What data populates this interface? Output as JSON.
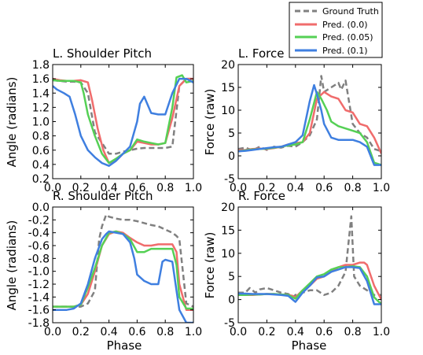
{
  "chart_data": [
    {
      "type": "line",
      "title": "L. Shoulder Pitch",
      "ylabel": "Angle (radians)",
      "xlabel": "",
      "xlim": [
        0.0,
        1.0
      ],
      "ylim": [
        0.2,
        1.8
      ],
      "xticks": [
        "0.0",
        "0.2",
        "0.4",
        "0.6",
        "0.8",
        "1.0"
      ],
      "yticks": [
        "0.2",
        "0.4",
        "0.6",
        "0.8",
        "1.0",
        "1.2",
        "1.4",
        "1.6",
        "1.8"
      ],
      "grid": false,
      "series": [
        {
          "name": "Ground Truth",
          "color": "#808080",
          "dash": true,
          "x": [
            0.0,
            0.05,
            0.1,
            0.15,
            0.2,
            0.25,
            0.3,
            0.35,
            0.4,
            0.45,
            0.5,
            0.55,
            0.6,
            0.65,
            0.7,
            0.75,
            0.8,
            0.85,
            0.9,
            0.95,
            1.0
          ],
          "y": [
            1.58,
            1.57,
            1.56,
            1.56,
            1.55,
            1.4,
            0.85,
            0.7,
            0.55,
            0.55,
            0.58,
            0.6,
            0.62,
            0.63,
            0.63,
            0.63,
            0.63,
            0.65,
            1.5,
            1.6,
            1.6
          ]
        },
        {
          "name": "Pred. (0.0)",
          "color": "#f06c6c",
          "x": [
            0.0,
            0.05,
            0.1,
            0.15,
            0.2,
            0.25,
            0.28,
            0.32,
            0.36,
            0.4,
            0.45,
            0.5,
            0.55,
            0.6,
            0.65,
            0.7,
            0.75,
            0.8,
            0.85,
            0.9,
            0.95,
            1.0
          ],
          "y": [
            1.6,
            1.58,
            1.57,
            1.57,
            1.58,
            1.55,
            1.3,
            0.9,
            0.6,
            0.42,
            0.45,
            0.55,
            0.6,
            0.72,
            0.7,
            0.68,
            0.68,
            0.7,
            1.05,
            1.5,
            1.6,
            1.6
          ]
        },
        {
          "name": "Pred. (0.05)",
          "color": "#55d055",
          "x": [
            0.0,
            0.05,
            0.1,
            0.15,
            0.2,
            0.22,
            0.25,
            0.3,
            0.35,
            0.4,
            0.45,
            0.5,
            0.55,
            0.6,
            0.65,
            0.7,
            0.75,
            0.8,
            0.85,
            0.88,
            0.92,
            0.95,
            1.0
          ],
          "y": [
            1.58,
            1.57,
            1.57,
            1.57,
            1.55,
            1.4,
            1.1,
            0.8,
            0.55,
            0.42,
            0.48,
            0.55,
            0.6,
            0.75,
            0.72,
            0.7,
            0.68,
            0.7,
            1.2,
            1.62,
            1.65,
            1.55,
            1.57
          ]
        },
        {
          "name": "Pred. (0.1)",
          "color": "#3f7fe0",
          "x": [
            0.0,
            0.03,
            0.08,
            0.12,
            0.16,
            0.2,
            0.25,
            0.3,
            0.35,
            0.4,
            0.45,
            0.5,
            0.55,
            0.6,
            0.62,
            0.65,
            0.7,
            0.75,
            0.8,
            0.85,
            0.9,
            0.95,
            1.0
          ],
          "y": [
            1.5,
            1.45,
            1.4,
            1.35,
            1.1,
            0.8,
            0.6,
            0.5,
            0.42,
            0.38,
            0.45,
            0.55,
            0.65,
            1.0,
            1.25,
            1.35,
            1.12,
            1.1,
            1.1,
            1.4,
            1.6,
            1.6,
            1.55
          ]
        }
      ]
    },
    {
      "type": "line",
      "title": "L. Force",
      "ylabel": "Force (raw)",
      "xlabel": "",
      "xlim": [
        0.0,
        1.0
      ],
      "ylim": [
        -5,
        20
      ],
      "xticks": [
        "0.0",
        "0.2",
        "0.4",
        "0.6",
        "0.8",
        "1.0"
      ],
      "yticks": [
        "-5",
        "0",
        "5",
        "10",
        "15",
        "20"
      ],
      "grid": false,
      "series": [
        {
          "name": "Ground Truth",
          "color": "#808080",
          "dash": true,
          "x": [
            0.0,
            0.05,
            0.1,
            0.15,
            0.2,
            0.25,
            0.3,
            0.35,
            0.4,
            0.45,
            0.5,
            0.55,
            0.58,
            0.6,
            0.65,
            0.7,
            0.72,
            0.75,
            0.8,
            0.85,
            0.9,
            0.95,
            1.0
          ],
          "y": [
            1.5,
            1.8,
            1.2,
            2.0,
            1.3,
            2.0,
            1.8,
            2.2,
            2.0,
            3.0,
            4.5,
            8.0,
            17.5,
            14.0,
            15.0,
            16.0,
            14.5,
            16.5,
            7.0,
            5.0,
            4.0,
            1.5,
            1.0
          ]
        },
        {
          "name": "Pred. (0.0)",
          "color": "#f06c6c",
          "x": [
            0.0,
            0.05,
            0.1,
            0.15,
            0.2,
            0.25,
            0.3,
            0.35,
            0.4,
            0.45,
            0.5,
            0.55,
            0.6,
            0.65,
            0.7,
            0.75,
            0.8,
            0.85,
            0.9,
            0.95,
            1.0
          ],
          "y": [
            1.2,
            1.3,
            1.5,
            1.6,
            1.5,
            1.7,
            2.0,
            2.5,
            2.8,
            3.0,
            5.0,
            12.5,
            14.0,
            13.0,
            12.5,
            10.0,
            9.5,
            7.0,
            6.5,
            4.0,
            0.5
          ]
        },
        {
          "name": "Pred. (0.05)",
          "color": "#55d055",
          "x": [
            0.0,
            0.05,
            0.1,
            0.15,
            0.2,
            0.25,
            0.3,
            0.35,
            0.4,
            0.45,
            0.5,
            0.55,
            0.58,
            0.62,
            0.65,
            0.7,
            0.75,
            0.8,
            0.85,
            0.9,
            0.95,
            1.0
          ],
          "y": [
            1.0,
            1.2,
            1.4,
            1.5,
            1.6,
            1.8,
            2.0,
            2.3,
            2.5,
            3.0,
            8.0,
            14.0,
            12.5,
            10.0,
            7.5,
            6.5,
            6.0,
            5.5,
            5.0,
            3.0,
            -1.5,
            -2.0
          ]
        },
        {
          "name": "Pred. (0.1)",
          "color": "#3f7fe0",
          "x": [
            0.0,
            0.05,
            0.1,
            0.15,
            0.2,
            0.25,
            0.3,
            0.35,
            0.4,
            0.45,
            0.5,
            0.53,
            0.55,
            0.58,
            0.6,
            0.65,
            0.7,
            0.75,
            0.8,
            0.85,
            0.9,
            0.95,
            1.0
          ],
          "y": [
            1.0,
            1.1,
            1.3,
            1.5,
            1.7,
            1.9,
            2.0,
            2.5,
            3.0,
            4.5,
            12.0,
            15.5,
            13.5,
            10.0,
            7.0,
            4.0,
            3.5,
            3.5,
            3.5,
            3.0,
            2.0,
            -2.0,
            -2.0
          ]
        }
      ]
    },
    {
      "type": "line",
      "title": "R. Shoulder Pitch",
      "ylabel": "Angle (radians)",
      "xlabel": "Phase",
      "xlim": [
        0.0,
        1.0
      ],
      "ylim": [
        -1.8,
        0.0
      ],
      "xticks": [
        "0.0",
        "0.2",
        "0.4",
        "0.6",
        "0.8",
        "1.0"
      ],
      "yticks": [
        "0.0",
        "-0.2",
        "-0.4",
        "-0.6",
        "-0.8",
        "-1.0",
        "-1.2",
        "-1.4",
        "-1.6",
        "-1.8"
      ],
      "grid": false,
      "series": [
        {
          "name": "Ground Truth",
          "color": "#808080",
          "dash": true,
          "x": [
            0.0,
            0.05,
            0.1,
            0.15,
            0.2,
            0.25,
            0.3,
            0.33,
            0.35,
            0.38,
            0.4,
            0.45,
            0.5,
            0.55,
            0.6,
            0.65,
            0.7,
            0.75,
            0.8,
            0.85,
            0.88,
            0.9,
            0.95,
            1.0
          ],
          "y": [
            -1.55,
            -1.55,
            -1.55,
            -1.55,
            -1.55,
            -1.5,
            -1.3,
            -0.5,
            -0.3,
            -0.12,
            -0.15,
            -0.18,
            -0.2,
            -0.2,
            -0.22,
            -0.25,
            -0.28,
            -0.3,
            -0.35,
            -0.4,
            -0.45,
            -0.5,
            -1.5,
            -1.55
          ]
        },
        {
          "name": "Pred. (0.0)",
          "color": "#f06c6c",
          "x": [
            0.0,
            0.05,
            0.1,
            0.15,
            0.2,
            0.25,
            0.3,
            0.35,
            0.4,
            0.45,
            0.5,
            0.55,
            0.6,
            0.65,
            0.7,
            0.75,
            0.8,
            0.85,
            0.88,
            0.9,
            0.95,
            1.0
          ],
          "y": [
            -1.55,
            -1.55,
            -1.55,
            -1.55,
            -1.52,
            -1.35,
            -1.0,
            -0.6,
            -0.42,
            -0.38,
            -0.4,
            -0.48,
            -0.55,
            -0.6,
            -0.6,
            -0.58,
            -0.58,
            -0.58,
            -0.7,
            -1.2,
            -1.6,
            -1.6
          ]
        },
        {
          "name": "Pred. (0.05)",
          "color": "#55d055",
          "x": [
            0.0,
            0.05,
            0.1,
            0.15,
            0.2,
            0.25,
            0.3,
            0.35,
            0.4,
            0.45,
            0.5,
            0.55,
            0.6,
            0.65,
            0.7,
            0.75,
            0.8,
            0.85,
            0.88,
            0.9,
            0.95,
            1.0
          ],
          "y": [
            -1.55,
            -1.55,
            -1.55,
            -1.55,
            -1.52,
            -1.25,
            -0.95,
            -0.6,
            -0.4,
            -0.38,
            -0.42,
            -0.5,
            -0.7,
            -0.7,
            -0.65,
            -0.65,
            -0.65,
            -0.65,
            -0.9,
            -1.4,
            -1.58,
            -1.58
          ]
        },
        {
          "name": "Pred. (0.1)",
          "color": "#3f7fe0",
          "x": [
            0.0,
            0.05,
            0.1,
            0.15,
            0.2,
            0.25,
            0.3,
            0.35,
            0.38,
            0.4,
            0.45,
            0.5,
            0.55,
            0.58,
            0.6,
            0.65,
            0.7,
            0.75,
            0.78,
            0.8,
            0.85,
            0.88,
            0.9,
            0.95,
            1.0
          ],
          "y": [
            -1.6,
            -1.6,
            -1.6,
            -1.58,
            -1.5,
            -1.2,
            -0.8,
            -0.5,
            -0.42,
            -0.38,
            -0.4,
            -0.42,
            -0.55,
            -0.8,
            -1.05,
            -1.15,
            -1.2,
            -1.2,
            -0.85,
            -0.82,
            -0.85,
            -1.3,
            -1.6,
            -1.8,
            -1.8
          ]
        }
      ]
    },
    {
      "type": "line",
      "title": "R. Force",
      "ylabel": "Force (raw)",
      "xlabel": "Phase",
      "xlim": [
        0.0,
        1.0
      ],
      "ylim": [
        -5,
        20
      ],
      "xticks": [
        "0.0",
        "0.2",
        "0.4",
        "0.6",
        "0.8",
        "1.0"
      ],
      "yticks": [
        "-5",
        "0",
        "5",
        "10",
        "15",
        "20"
      ],
      "grid": false,
      "series": [
        {
          "name": "Ground Truth",
          "color": "#808080",
          "dash": true,
          "x": [
            0.0,
            0.05,
            0.08,
            0.12,
            0.15,
            0.2,
            0.25,
            0.3,
            0.35,
            0.38,
            0.4,
            0.45,
            0.5,
            0.55,
            0.6,
            0.65,
            0.7,
            0.75,
            0.77,
            0.79,
            0.81,
            0.85,
            0.9,
            0.95,
            1.0
          ],
          "y": [
            1.5,
            1.5,
            2.5,
            1.5,
            2.2,
            2.5,
            2.0,
            1.5,
            1.2,
            0.5,
            1.0,
            1.5,
            2.0,
            2.0,
            1.0,
            1.5,
            3.0,
            6.0,
            12.0,
            18.0,
            5.0,
            3.0,
            2.0,
            1.0,
            1.0
          ]
        },
        {
          "name": "Pred. (0.0)",
          "color": "#f06c6c",
          "x": [
            0.0,
            0.05,
            0.1,
            0.15,
            0.2,
            0.25,
            0.3,
            0.35,
            0.38,
            0.4,
            0.45,
            0.5,
            0.55,
            0.6,
            0.65,
            0.7,
            0.75,
            0.8,
            0.85,
            0.88,
            0.9,
            0.95,
            1.0
          ],
          "y": [
            1.0,
            1.0,
            1.0,
            1.1,
            1.2,
            1.2,
            1.1,
            1.0,
            0.8,
            0.5,
            2.0,
            3.0,
            4.5,
            5.0,
            6.0,
            7.0,
            7.5,
            7.5,
            8.0,
            8.0,
            7.5,
            3.0,
            0.0
          ]
        },
        {
          "name": "Pred. (0.05)",
          "color": "#55d055",
          "x": [
            0.0,
            0.05,
            0.1,
            0.15,
            0.2,
            0.25,
            0.3,
            0.35,
            0.38,
            0.4,
            0.45,
            0.5,
            0.55,
            0.6,
            0.65,
            0.7,
            0.75,
            0.8,
            0.85,
            0.9,
            0.95,
            1.0
          ],
          "y": [
            1.0,
            1.0,
            1.1,
            1.1,
            1.2,
            1.2,
            1.1,
            1.0,
            0.5,
            0.2,
            2.0,
            3.5,
            5.0,
            5.5,
            6.5,
            7.0,
            7.0,
            7.2,
            7.0,
            5.0,
            0.5,
            -1.0
          ]
        },
        {
          "name": "Pred. (0.1)",
          "color": "#3f7fe0",
          "x": [
            0.0,
            0.05,
            0.1,
            0.15,
            0.2,
            0.25,
            0.3,
            0.35,
            0.38,
            0.4,
            0.45,
            0.5,
            0.55,
            0.6,
            0.65,
            0.7,
            0.75,
            0.8,
            0.85,
            0.9,
            0.95,
            1.0
          ],
          "y": [
            1.3,
            1.3,
            1.2,
            1.2,
            1.2,
            1.1,
            1.0,
            0.8,
            0.0,
            -0.5,
            1.5,
            3.0,
            4.8,
            5.0,
            6.0,
            6.5,
            7.0,
            7.0,
            6.8,
            4.0,
            -1.0,
            -1.0
          ]
        }
      ]
    }
  ],
  "legend": {
    "placement": "top-right",
    "entries": [
      {
        "label": "Ground Truth",
        "color": "#808080",
        "dash": true
      },
      {
        "label": "Pred. (0.0)",
        "color": "#f06c6c",
        "dash": false
      },
      {
        "label": "Pred. (0.05)",
        "color": "#55d055",
        "dash": false
      },
      {
        "label": "Pred. (0.1)",
        "color": "#3f7fe0",
        "dash": false
      }
    ]
  }
}
